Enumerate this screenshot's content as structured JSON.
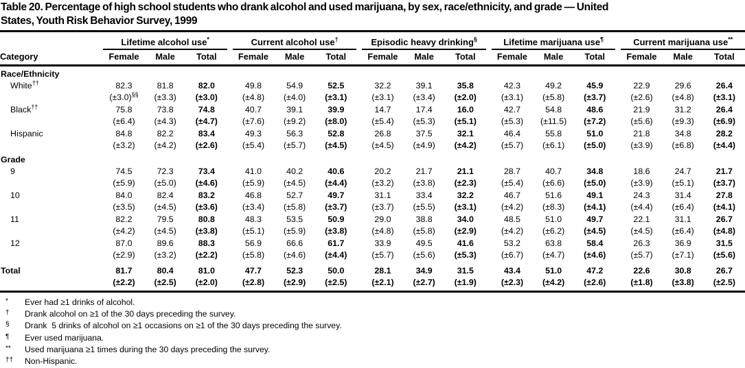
{
  "title": {
    "line1": "Table 20. Percentage of high school students who drank alcohol and used marijuana, by sex, race/ethnicity, and grade — United",
    "line2": "States, Youth Risk Behavior Survey, 1999"
  },
  "table": {
    "category_header": "Category",
    "sub_headers": [
      "Female",
      "Male",
      "Total"
    ],
    "groups": [
      {
        "label": "Lifetime alcohol use",
        "marker": "*"
      },
      {
        "label": "Current alcohol use",
        "marker": "†"
      },
      {
        "label": "Episodic heavy drinking",
        "marker": "§"
      },
      {
        "label": "Lifetime marijuana use",
        "marker": "¶"
      },
      {
        "label": "Current marijuana use",
        "marker": "**"
      }
    ],
    "sections": [
      {
        "label": "Race/Ethnicity",
        "rows": [
          {
            "label": "White",
            "label_sup": "††",
            "ci0_sup": "§§",
            "values": [
              "82.3",
              "81.8",
              "82.0",
              "49.8",
              "54.9",
              "52.5",
              "32.2",
              "39.1",
              "35.8",
              "42.3",
              "49.2",
              "45.9",
              "22.9",
              "29.6",
              "26.4"
            ],
            "ci": [
              "(±3.0)",
              "(±3.3)",
              "(±3.0)",
              "(±4.8)",
              "(±4.0)",
              "(±3.1)",
              "(±3.1)",
              "(±3.4)",
              "(±2.0)",
              "(±3.1)",
              "(±5.8)",
              "(±3.7)",
              "(±2.6)",
              "(±4.8)",
              "(±3.1)"
            ]
          },
          {
            "label": "Black",
            "label_sup": "††",
            "values": [
              "75.8",
              "73.8",
              "74.8",
              "40.7",
              "39.1",
              "39.9",
              "14.7",
              "17.4",
              "16.0",
              "42.7",
              "54.8",
              "48.6",
              "21.9",
              "31.2",
              "26.4"
            ],
            "ci": [
              "(±6.4)",
              "(±4.3)",
              "(±4.7)",
              "(±7.6)",
              "(±9.2)",
              "(±8.0)",
              "(±5.4)",
              "(±5.3)",
              "(±5.1)",
              "(±5.3)",
              "(±11.5)",
              "(±7.2)",
              "(±5.6)",
              "(±9.3)",
              "(±6.9)"
            ]
          },
          {
            "label": "Hispanic",
            "label_sup": "",
            "values": [
              "84.8",
              "82.2",
              "83.4",
              "49.3",
              "56.3",
              "52.8",
              "26.8",
              "37.5",
              "32.1",
              "46.4",
              "55.8",
              "51.0",
              "21.8",
              "34.8",
              "28.2"
            ],
            "ci": [
              "(±3.2)",
              "(±4.2)",
              "(±2.6)",
              "(±5.4)",
              "(±5.7)",
              "(±4.5)",
              "(±4.5)",
              "(±4.9)",
              "(±4.2)",
              "(±5.7)",
              "(±6.1)",
              "(±5.0)",
              "(±3.9)",
              "(±6.8)",
              "(±4.4)"
            ]
          }
        ]
      },
      {
        "label": "Grade",
        "rows": [
          {
            "label": "9",
            "label_sup": "",
            "values": [
              "74.5",
              "72.3",
              "73.4",
              "41.0",
              "40.2",
              "40.6",
              "20.2",
              "21.7",
              "21.1",
              "28.7",
              "40.7",
              "34.8",
              "18.6",
              "24.7",
              "21.7"
            ],
            "ci": [
              "(±5.9)",
              "(±5.0)",
              "(±4.6)",
              "(±5.9)",
              "(±4.5)",
              "(±4.4)",
              "(±3.2)",
              "(±3.8)",
              "(±2.3)",
              "(±5.4)",
              "(±6.6)",
              "(±5.0)",
              "(±3.9)",
              "(±5.1)",
              "(±3.7)"
            ]
          },
          {
            "label": "10",
            "label_sup": "",
            "values": [
              "84.0",
              "82.4",
              "83.2",
              "46.8",
              "52.7",
              "49.7",
              "31.1",
              "33.4",
              "32.2",
              "46.7",
              "51.6",
              "49.1",
              "24.3",
              "31.4",
              "27.8"
            ],
            "ci": [
              "(±3.5)",
              "(±4.5)",
              "(±3.6)",
              "(±3.4)",
              "(±5.8)",
              "(±3.7)",
              "(±3.7)",
              "(±5.5)",
              "(±3.1)",
              "(±4.2)",
              "(±8.3)",
              "(±4.1)",
              "(±4.4)",
              "(±6.4)",
              "(±4.1)"
            ]
          },
          {
            "label": "11",
            "label_sup": "",
            "values": [
              "82.2",
              "79.5",
              "80.8",
              "48.3",
              "53.5",
              "50.9",
              "29.0",
              "38.8",
              "34.0",
              "48.5",
              "51.0",
              "49.7",
              "22.1",
              "31.1",
              "26.7"
            ],
            "ci": [
              "(±4.2)",
              "(±4.5)",
              "(±3.8)",
              "(±5.1)",
              "(±5.9)",
              "(±3.8)",
              "(±4.8)",
              "(±5.8)",
              "(±2.9)",
              "(±4.2)",
              "(±6.2)",
              "(±4.5)",
              "(±4.5)",
              "(±6.4)",
              "(±4.8)"
            ]
          },
          {
            "label": "12",
            "label_sup": "",
            "values": [
              "87.0",
              "89.6",
              "88.3",
              "56.9",
              "66.6",
              "61.7",
              "33.9",
              "49.5",
              "41.6",
              "53.2",
              "63.8",
              "58.4",
              "26.3",
              "36.9",
              "31.5"
            ],
            "ci": [
              "(±2.9)",
              "(±3.2)",
              "(±2.2)",
              "(±5.8)",
              "(±4.6)",
              "(±4.4)",
              "(±5.7)",
              "(±5.6)",
              "(±5.3)",
              "(±6.7)",
              "(±4.7)",
              "(±4.6)",
              "(±5.7)",
              "(±7.1)",
              "(±5.6)"
            ]
          }
        ]
      }
    ],
    "total_row": {
      "label": "Total",
      "label_sup": "",
      "values": [
        "81.7",
        "80.4",
        "81.0",
        "47.7",
        "52.3",
        "50.0",
        "28.1",
        "34.9",
        "31.5",
        "43.4",
        "51.0",
        "47.2",
        "22.6",
        "30.8",
        "26.7"
      ],
      "ci": [
        "(±2.2)",
        "(±2.5)",
        "(±2.0)",
        "(±2.8)",
        "(±2.9)",
        "(±2.5)",
        "(±2.1)",
        "(±2.7)",
        "(±1.9)",
        "(±2.3)",
        "(±4.2)",
        "(±2.6)",
        "(±1.8)",
        "(±3.8)",
        "(±2.5)"
      ]
    }
  },
  "footnotes": [
    {
      "marker": "*",
      "text": "Ever had ≥1 drinks of alcohol."
    },
    {
      "marker": "†",
      "text": "Drank alcohol on ≥1 of the 30 days preceding the survey."
    },
    {
      "marker": "§",
      "text": "Drank  5 drinks of alcohol on ≥1 occasions on ≥1 of the 30 days preceding the survey."
    },
    {
      "marker": "¶",
      "text": "Ever used marijuana."
    },
    {
      "marker": "**",
      "text": "Used marijuana ≥1 times during the 30 days preceding the survey."
    },
    {
      "marker": "††",
      "text": "Non-Hispanic."
    },
    {
      "marker": "§§",
      "text": "Ninety-five percent confidence interval."
    }
  ]
}
